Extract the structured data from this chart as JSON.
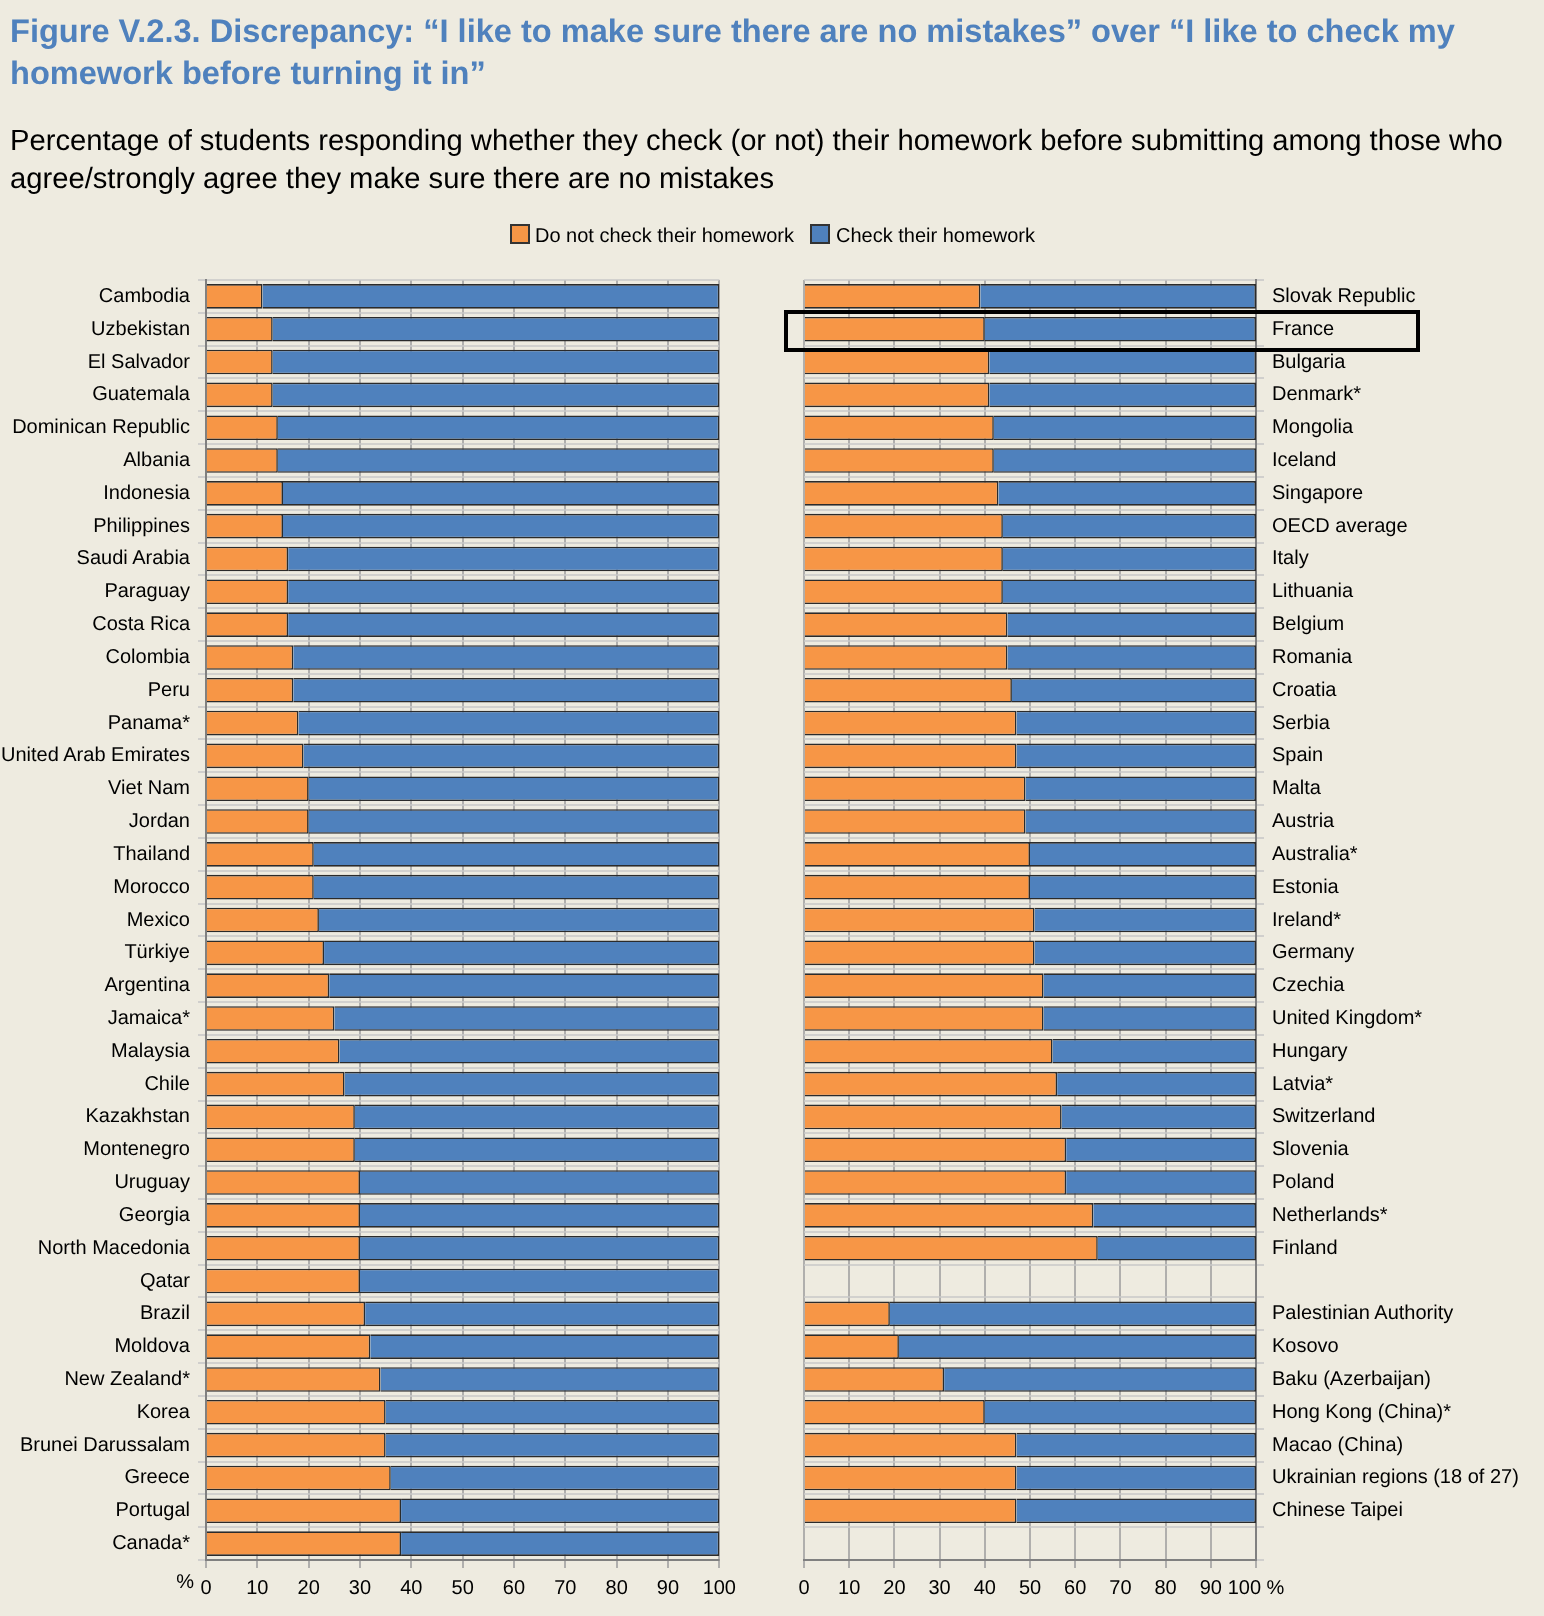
{
  "chart_data": [
    {
      "type": "bar",
      "orientation": "horizontal",
      "stacked": true,
      "title": "Figure V.2.3. Discrepancy: “I like to make sure there are no mistakes” over “I like to check my homework before turning it in”",
      "subtitle": "Percentage of students responding whether they check (or not) their homework before submitting among those who agree/strongly agree they make sure there are no mistakes",
      "legend": "top",
      "xlabel": "%",
      "grid": true,
      "xlim": [
        0,
        100
      ],
      "xticks": [
        0,
        10,
        20,
        30,
        40,
        50,
        60,
        70,
        80,
        90,
        100
      ],
      "categories": [
        "Cambodia",
        "Uzbekistan",
        "El Salvador",
        "Guatemala",
        "Dominican Republic",
        "Albania",
        "Indonesia",
        "Philippines",
        "Saudi Arabia",
        "Paraguay",
        "Costa Rica",
        "Colombia",
        "Peru",
        "Panama*",
        "United Arab Emirates",
        "Viet Nam",
        "Jordan",
        "Thailand",
        "Morocco",
        "Mexico",
        "Türkiye",
        "Argentina",
        "Jamaica*",
        "Malaysia",
        "Chile",
        "Kazakhstan",
        "Montenegro",
        "Uruguay",
        "Georgia",
        "North Macedonia",
        "Qatar",
        "Brazil",
        "Moldova",
        "New Zealand*",
        "Korea",
        "Brunei Darussalam",
        "Greece",
        "Portugal",
        "Canada*"
      ],
      "series": [
        {
          "name": "Do not check their homework",
          "color": "#f79646",
          "values": [
            11,
            13,
            13,
            13,
            14,
            14,
            15,
            15,
            16,
            16,
            16,
            17,
            17,
            18,
            19,
            20,
            20,
            21,
            21,
            22,
            23,
            24,
            25,
            26,
            27,
            29,
            29,
            30,
            30,
            30,
            30,
            31,
            32,
            34,
            35,
            35,
            36,
            38,
            38
          ]
        },
        {
          "name": "Check their homework",
          "color": "#4f81bd",
          "values": [
            89,
            87,
            87,
            87,
            86,
            86,
            85,
            85,
            84,
            84,
            84,
            83,
            83,
            82,
            81,
            80,
            80,
            79,
            79,
            78,
            77,
            76,
            75,
            74,
            73,
            71,
            71,
            70,
            70,
            70,
            70,
            69,
            68,
            66,
            65,
            65,
            64,
            62,
            62
          ]
        }
      ]
    },
    {
      "type": "bar",
      "orientation": "horizontal",
      "stacked": true,
      "grid": true,
      "xlim": [
        0,
        100
      ],
      "xticks": [
        0,
        10,
        20,
        30,
        40,
        50,
        60,
        70,
        80,
        90,
        {
          "value": 100,
          "label": "100 %"
        }
      ],
      "categories": [
        "Slovak Republic",
        "France",
        "Bulgaria",
        "Denmark*",
        "Mongolia",
        "Iceland",
        "Singapore",
        "OECD average",
        "Italy",
        "Lithuania",
        "Belgium",
        "Romania",
        "Croatia",
        "Serbia",
        "Spain",
        "Malta",
        "Austria",
        "Australia*",
        "Estonia",
        "Ireland*",
        "Germany",
        "Czechia",
        "United Kingdom*",
        "Hungary",
        "Latvia*",
        "Switzerland",
        "Slovenia",
        "Poland",
        "Netherlands*",
        "Finland",
        null,
        "Palestinian Authority",
        "Kosovo",
        "Baku (Azerbaijan)",
        "Hong Kong (China)*",
        "Macao (China)",
        "Ukrainian regions (18 of 27)",
        "Chinese Taipei",
        null
      ],
      "series": [
        {
          "color": "#f79646",
          "values": [
            39,
            40,
            41,
            41,
            42,
            42,
            43,
            44,
            44,
            44,
            45,
            45,
            46,
            47,
            47,
            49,
            49,
            50,
            50,
            51,
            51,
            53,
            53,
            55,
            56,
            57,
            58,
            58,
            64,
            65,
            null,
            19,
            21,
            31,
            40,
            47,
            47,
            47,
            null
          ]
        },
        {
          "color": "#4f81bd",
          "values": [
            61,
            60,
            59,
            59,
            58,
            58,
            57,
            56,
            56,
            56,
            55,
            55,
            54,
            53,
            53,
            51,
            51,
            50,
            50,
            49,
            49,
            47,
            47,
            45,
            44,
            43,
            42,
            42,
            36,
            35,
            null,
            81,
            79,
            69,
            60,
            53,
            53,
            53,
            null
          ]
        }
      ]
    }
  ]
}
